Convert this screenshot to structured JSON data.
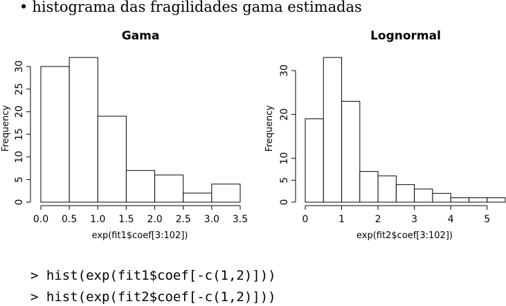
{
  "header": {
    "bullet": "•",
    "text": "histograma das fragilidades gama estimadas"
  },
  "chart_data": [
    {
      "type": "bar",
      "title": "Gama",
      "xlabel": "exp(fit1$coef[3:102])",
      "ylabel": "Frequency",
      "bins": [
        [
          0.0,
          0.5
        ],
        [
          0.5,
          1.0
        ],
        [
          1.0,
          1.5
        ],
        [
          1.5,
          2.0
        ],
        [
          2.0,
          2.5
        ],
        [
          2.5,
          3.0
        ],
        [
          3.0,
          3.5
        ]
      ],
      "values": [
        30,
        32,
        19,
        7,
        6,
        2,
        4
      ],
      "xlim": [
        0,
        3.5
      ],
      "ylim": [
        0,
        32
      ],
      "xticks": [
        "0.0",
        "0.5",
        "1.0",
        "1.5",
        "2.0",
        "2.5",
        "3.0",
        "3.5"
      ],
      "yticks": [
        "0",
        "5",
        "10",
        "15",
        "20",
        "25",
        "30"
      ]
    },
    {
      "type": "bar",
      "title": "Lognormal",
      "xlabel": "exp(fit2$coef[3:102])",
      "ylabel": "Frequency",
      "bins": [
        [
          0.0,
          0.5
        ],
        [
          0.5,
          1.0
        ],
        [
          1.0,
          1.5
        ],
        [
          1.5,
          2.0
        ],
        [
          2.0,
          2.5
        ],
        [
          2.5,
          3.0
        ],
        [
          3.0,
          3.5
        ],
        [
          3.5,
          4.0
        ],
        [
          4.0,
          4.5
        ],
        [
          4.5,
          5.0
        ],
        [
          5.0,
          5.5
        ]
      ],
      "values": [
        19,
        33,
        23,
        7,
        6,
        4,
        3,
        2,
        1,
        1,
        1
      ],
      "xlim": [
        0,
        5.5
      ],
      "ylim": [
        0,
        33
      ],
      "xticks": [
        "0",
        "1",
        "2",
        "3",
        "4",
        "5"
      ],
      "yticks": [
        "0",
        "5",
        "10",
        "20",
        "30"
      ]
    }
  ],
  "code": [
    "> hist(exp(fit1$coef[-c(1,2)]))",
    "> hist(exp(fit2$coef[-c(1,2)]))"
  ]
}
